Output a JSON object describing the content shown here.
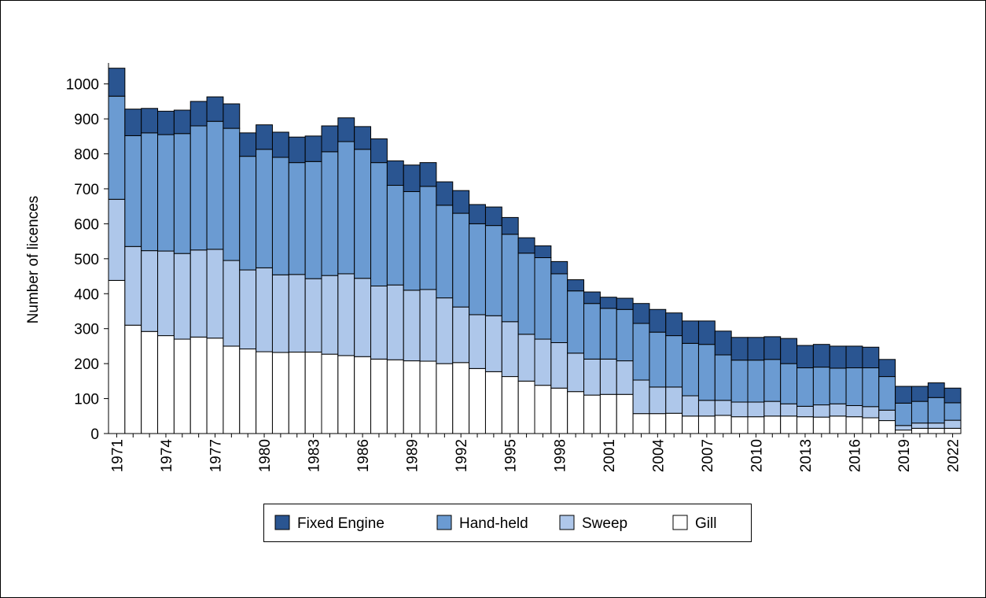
{
  "chart_data": {
    "type": "stacked_bar",
    "y_label": "Number of licences",
    "categories": [
      "1971",
      null,
      null,
      "1974",
      null,
      null,
      "1977",
      null,
      null,
      "1980",
      null,
      null,
      "1983",
      null,
      null,
      "1986",
      null,
      null,
      "1989",
      null,
      null,
      "1992",
      null,
      null,
      "1995",
      null,
      null,
      "1998",
      null,
      null,
      "2001",
      null,
      null,
      "2004",
      null,
      null,
      "2007",
      null,
      null,
      "2010",
      null,
      null,
      "2013",
      null,
      null,
      "2016",
      null,
      null,
      "2019",
      null,
      null,
      "2022"
    ],
    "series": [
      {
        "name": "Fixed Engine",
        "color": "#2a5591",
        "values": [
          80,
          76,
          70,
          67,
          67,
          70,
          70,
          70,
          67,
          70,
          72,
          73,
          73,
          74,
          68,
          65,
          68,
          70,
          76,
          68,
          67,
          65,
          55,
          53,
          48,
          44,
          34,
          35,
          32,
          33,
          32,
          32,
          57,
          65,
          65,
          64,
          67,
          68,
          65,
          65,
          65,
          72,
          64,
          65,
          63,
          62,
          59,
          49,
          48,
          43,
          42,
          42
        ]
      },
      {
        "name": "Hand-held",
        "color": "#6b9bd2",
        "values": [
          295,
          317,
          337,
          333,
          343,
          355,
          366,
          378,
          325,
          339,
          336,
          320,
          335,
          354,
          378,
          369,
          353,
          285,
          282,
          295,
          265,
          268,
          260,
          258,
          250,
          232,
          233,
          197,
          178,
          159,
          145,
          147,
          162,
          157,
          147,
          150,
          160,
          130,
          120,
          120,
          120,
          115,
          110,
          108,
          102,
          108,
          111,
          96,
          64,
          62,
          73,
          50
        ]
      },
      {
        "name": "Sweep",
        "color": "#aec7ea",
        "values": [
          232,
          225,
          231,
          242,
          245,
          249,
          254,
          245,
          226,
          240,
          222,
          222,
          210,
          225,
          234,
          224,
          209,
          214,
          202,
          205,
          188,
          159,
          154,
          160,
          157,
          134,
          132,
          130,
          110,
          103,
          101,
          96,
          96,
          76,
          75,
          58,
          45,
          43,
          42,
          42,
          42,
          35,
          30,
          35,
          35,
          32,
          32,
          30,
          13,
          15,
          15,
          23
        ]
      },
      {
        "name": "Gill",
        "color": "#ffffff",
        "values": [
          438,
          310,
          292,
          280,
          270,
          276,
          273,
          250,
          242,
          234,
          232,
          233,
          233,
          227,
          223,
          220,
          213,
          211,
          208,
          207,
          200,
          203,
          186,
          177,
          163,
          150,
          138,
          130,
          120,
          110,
          112,
          112,
          57,
          57,
          58,
          50,
          50,
          52,
          48,
          48,
          50,
          50,
          48,
          47,
          50,
          48,
          45,
          37,
          10,
          15,
          15,
          15
        ]
      }
    ],
    "ylim": [
      0,
      1060
    ],
    "yticks": [
      0,
      100,
      200,
      300,
      400,
      500,
      600,
      700,
      800,
      900,
      1000
    ]
  }
}
